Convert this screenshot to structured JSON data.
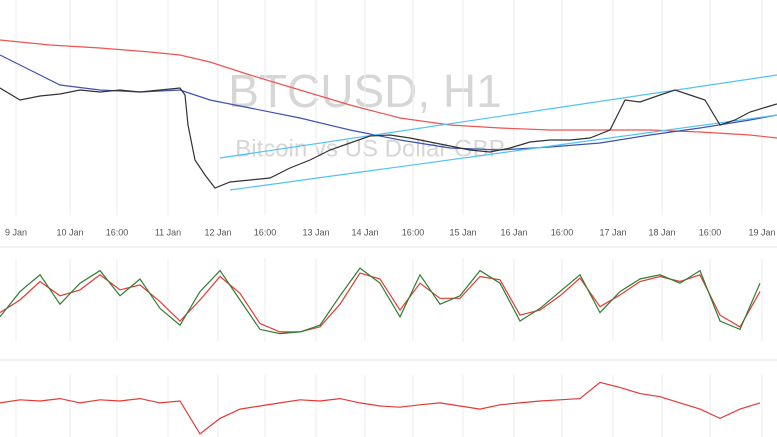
{
  "chart_data": [
    {
      "type": "line",
      "title": "BTCUSD, H1",
      "subtitle": "Bitcoin vs US Dollar GBP",
      "xlim": [
        0,
        77.7
      ],
      "ylim": [
        0,
        215
      ],
      "grid": true,
      "xticks": [
        {
          "value": 1.6,
          "label": "9 Jan"
        },
        {
          "value": 7.0,
          "label": "10 Jan"
        },
        {
          "value": 11.7,
          "label": "16:00"
        },
        {
          "value": 16.8,
          "label": "11 Jan"
        },
        {
          "value": 21.8,
          "label": "12 Jan"
        },
        {
          "value": 26.5,
          "label": "16:00"
        },
        {
          "value": 31.6,
          "label": "13 Jan"
        },
        {
          "value": 36.5,
          "label": "14 Jan"
        },
        {
          "value": 41.3,
          "label": "16:00"
        },
        {
          "value": 46.3,
          "label": "15 Jan"
        },
        {
          "value": 51.4,
          "label": "16 Jan"
        },
        {
          "value": 56.2,
          "label": "16:00"
        },
        {
          "value": 61.3,
          "label": "17 Jan"
        },
        {
          "value": 66.2,
          "label": "18 Jan"
        },
        {
          "value": 71.0,
          "label": "16:00"
        },
        {
          "value": 76.2,
          "label": "19 Jan"
        }
      ],
      "series": [
        {
          "color": "#ef5350",
          "x": [
            0,
            5,
            10,
            15,
            18,
            21,
            25,
            30,
            35,
            40,
            45,
            50,
            55,
            60,
            65,
            70,
            75,
            77.7
          ],
          "values": [
            175,
            170,
            167,
            163,
            160,
            153,
            140,
            125,
            110,
            97,
            90,
            87,
            85,
            85,
            85,
            83,
            80,
            77
          ]
        },
        {
          "color": "#3f51b5",
          "x": [
            0,
            3,
            6,
            10,
            14,
            18,
            21,
            25,
            30,
            35,
            40,
            45,
            50,
            55,
            60,
            65,
            70,
            75,
            77.7
          ],
          "values": [
            160,
            145,
            130,
            125,
            123,
            125,
            115,
            107,
            97,
            85,
            75,
            67,
            65,
            68,
            72,
            80,
            87,
            95,
            100
          ]
        },
        {
          "color": "#4fc3f7",
          "x": [
            22,
            77.7
          ],
          "values": [
            57,
            140
          ]
        },
        {
          "color": "#4fc3f7",
          "x": [
            23,
            77.7
          ],
          "values": [
            25,
            100
          ]
        },
        {
          "color": "#333333",
          "x": [
            0,
            2,
            4,
            6,
            8,
            10,
            12,
            14,
            16,
            18,
            18.5,
            18.8,
            19.5,
            20.5,
            21.5,
            23,
            25,
            27,
            29,
            31,
            33,
            35,
            37,
            39,
            41,
            43,
            45,
            47,
            49,
            51,
            53,
            55,
            57,
            59,
            61,
            62.5,
            64,
            66,
            67.5,
            69,
            70.5,
            72,
            73.5,
            75,
            77,
            77.7
          ],
          "values": [
            127,
            115,
            119,
            121,
            125,
            123,
            125,
            123,
            125,
            127,
            120,
            90,
            55,
            40,
            27,
            33,
            35,
            37,
            47,
            55,
            65,
            72,
            79,
            80,
            77,
            73,
            69,
            65,
            63,
            67,
            73,
            75,
            75,
            77,
            85,
            115,
            113,
            120,
            125,
            120,
            115,
            90,
            95,
            103,
            109,
            111
          ]
        }
      ]
    },
    {
      "type": "line",
      "xlim": [
        0,
        77.7
      ],
      "ylim": [
        0,
        100
      ],
      "series": [
        {
          "color": "#e53935",
          "x": [
            0,
            2,
            4,
            6,
            8,
            10,
            12,
            14,
            16,
            18,
            20,
            22,
            24,
            26,
            28,
            30,
            32,
            34,
            36,
            38,
            40,
            42,
            44,
            46,
            48,
            50,
            52,
            54,
            56,
            58,
            60,
            62,
            64,
            66,
            68,
            70,
            72,
            74,
            76
          ],
          "values": [
            35,
            50,
            72,
            55,
            62,
            80,
            62,
            68,
            48,
            25,
            50,
            78,
            58,
            22,
            12,
            12,
            18,
            45,
            82,
            75,
            38,
            70,
            52,
            52,
            78,
            74,
            32,
            38,
            55,
            76,
            42,
            56,
            72,
            78,
            72,
            80,
            32,
            18,
            60
          ]
        },
        {
          "color": "#2e7d32",
          "x": [
            0,
            2,
            4,
            6,
            8,
            10,
            12,
            14,
            16,
            18,
            20,
            22,
            24,
            26,
            28,
            30,
            32,
            34,
            36,
            38,
            40,
            42,
            44,
            46,
            48,
            50,
            52,
            54,
            56,
            58,
            60,
            62,
            64,
            66,
            68,
            70,
            72,
            74,
            76
          ],
          "values": [
            30,
            60,
            80,
            45,
            70,
            85,
            55,
            75,
            40,
            20,
            60,
            85,
            50,
            15,
            10,
            12,
            20,
            55,
            88,
            70,
            30,
            80,
            45,
            55,
            85,
            70,
            25,
            40,
            60,
            80,
            35,
            60,
            75,
            80,
            70,
            85,
            25,
            15,
            70
          ]
        }
      ]
    },
    {
      "type": "line",
      "xlim": [
        0,
        77.7
      ],
      "ylim": [
        0,
        100
      ],
      "series": [
        {
          "color": "#e53935",
          "x": [
            0,
            2,
            4,
            6,
            8,
            10,
            12,
            14,
            16,
            18,
            20,
            22,
            24,
            26,
            28,
            30,
            32,
            34,
            36,
            38,
            40,
            42,
            44,
            46,
            48,
            50,
            52,
            54,
            56,
            58,
            60,
            62,
            64,
            66,
            68,
            70,
            72,
            74,
            76
          ],
          "values": [
            55,
            60,
            58,
            62,
            55,
            60,
            58,
            62,
            55,
            58,
            5,
            30,
            45,
            50,
            55,
            60,
            58,
            62,
            55,
            50,
            48,
            52,
            55,
            50,
            45,
            52,
            55,
            58,
            60,
            62,
            88,
            80,
            70,
            65,
            55,
            45,
            30,
            45,
            55
          ]
        }
      ]
    }
  ]
}
